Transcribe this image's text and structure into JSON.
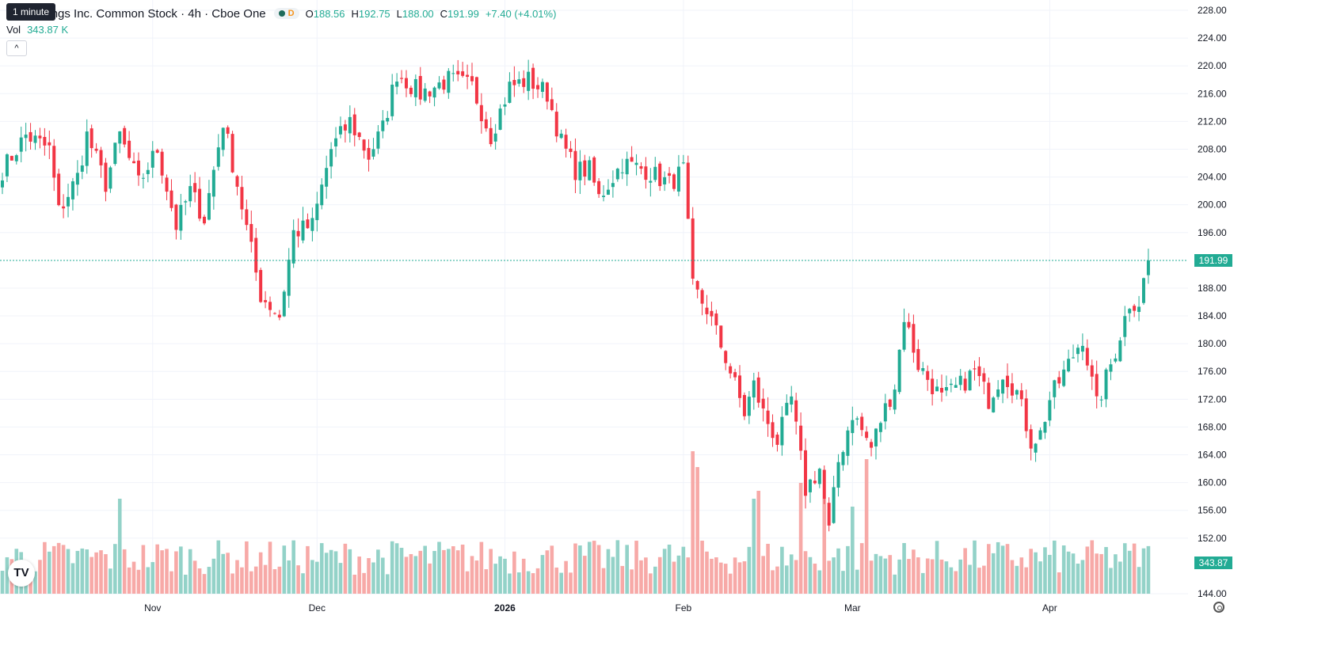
{
  "header": {
    "title": "Kg Holdings Inc. Common Stock · 4h · Cboe One",
    "status_badge": "D",
    "ohlc": {
      "o_label": "O",
      "o": "188.56",
      "h_label": "H",
      "h": "192.75",
      "l_label": "L",
      "l": "188.00",
      "c_label": "C",
      "c": "191.99",
      "change": "+7.40 (+4.01%)"
    },
    "tooltip": "1 minute"
  },
  "volume_row": {
    "label": "Vol",
    "value": "343.87 K"
  },
  "buttons": {
    "collapse": "^"
  },
  "logo": {
    "text": "TV"
  },
  "price_tags": {
    "last_price": "191.99",
    "last_volume": "343.87 K"
  },
  "colors": {
    "up": "#22ab94",
    "down": "#f23645",
    "vol_up": "#93d2c8",
    "vol_down": "#f7a9a7",
    "grid": "#f0f3fa",
    "axis_text": "#131722"
  },
  "icons": {
    "settings": "gear-icon",
    "collapse": "chevron-up-icon"
  },
  "chart_data": {
    "type": "candlestick",
    "interval": "4h",
    "y_ticks": [
      144,
      152,
      156,
      160,
      164,
      168,
      172,
      176,
      180,
      184,
      188,
      196,
      200,
      204,
      208,
      212,
      216,
      220,
      224,
      228
    ],
    "y_tick_labels": [
      "144.00",
      "152.00",
      "156.00",
      "160.00",
      "164.00",
      "168.00",
      "172.00",
      "176.00",
      "180.00",
      "184.00",
      "188.00",
      "196.00",
      "200.00",
      "204.00",
      "208.00",
      "212.00",
      "216.00",
      "220.00",
      "224.00",
      "228.00"
    ],
    "x_labels": [
      "Nov",
      "Dec",
      "2026",
      "Feb",
      "Mar",
      "Apr"
    ],
    "x_label_bar_index": [
      32,
      67,
      107,
      145,
      181,
      223
    ],
    "last_price": 191.99,
    "path": [
      [
        0,
        205
      ],
      [
        5,
        210
      ],
      [
        10,
        208
      ],
      [
        12,
        199
      ],
      [
        16,
        204
      ],
      [
        18,
        210
      ],
      [
        22,
        203
      ],
      [
        25,
        210
      ],
      [
        29,
        203
      ],
      [
        33,
        208
      ],
      [
        37,
        197
      ],
      [
        40,
        202
      ],
      [
        43,
        198
      ],
      [
        47,
        212
      ],
      [
        50,
        203
      ],
      [
        55,
        187
      ],
      [
        59,
        184
      ],
      [
        62,
        196
      ],
      [
        66,
        197
      ],
      [
        70,
        208
      ],
      [
        74,
        212
      ],
      [
        78,
        207
      ],
      [
        81,
        211
      ],
      [
        84,
        219
      ],
      [
        89,
        216
      ],
      [
        95,
        218
      ],
      [
        100,
        217
      ],
      [
        104,
        210
      ],
      [
        108,
        217
      ],
      [
        112,
        218
      ],
      [
        116,
        216
      ],
      [
        119,
        209
      ],
      [
        122,
        205
      ],
      [
        125,
        205
      ],
      [
        127,
        201
      ],
      [
        132,
        206
      ],
      [
        137,
        205
      ],
      [
        142,
        203
      ],
      [
        145,
        205
      ],
      [
        147,
        188
      ],
      [
        150,
        185
      ],
      [
        154,
        178
      ],
      [
        158,
        170
      ],
      [
        160,
        174
      ],
      [
        162,
        170
      ],
      [
        165,
        166
      ],
      [
        168,
        172
      ],
      [
        171,
        159
      ],
      [
        174,
        162
      ],
      [
        176,
        153
      ],
      [
        178,
        163
      ],
      [
        181,
        170
      ],
      [
        185,
        165
      ],
      [
        187,
        169
      ],
      [
        190,
        174
      ],
      [
        192,
        184
      ],
      [
        195,
        177
      ],
      [
        200,
        172
      ],
      [
        204,
        174
      ],
      [
        207,
        176
      ],
      [
        210,
        172
      ],
      [
        213,
        176
      ],
      [
        216,
        173
      ],
      [
        219,
        166
      ],
      [
        221,
        167
      ],
      [
        223,
        172
      ],
      [
        227,
        177
      ],
      [
        230,
        181
      ],
      [
        233,
        171
      ],
      [
        237,
        179
      ],
      [
        240,
        186
      ],
      [
        242,
        186
      ],
      [
        244,
        191.99
      ]
    ],
    "vol": {
      "count": 245,
      "base": 20,
      "spike_bars": [
        [
          25,
          60
        ],
        [
          147,
          90
        ],
        [
          148,
          80
        ],
        [
          160,
          60
        ],
        [
          161,
          65
        ],
        [
          170,
          70
        ],
        [
          184,
          85
        ],
        [
          175,
          60
        ],
        [
          181,
          55
        ]
      ]
    },
    "last_volume": "343.87 K"
  }
}
